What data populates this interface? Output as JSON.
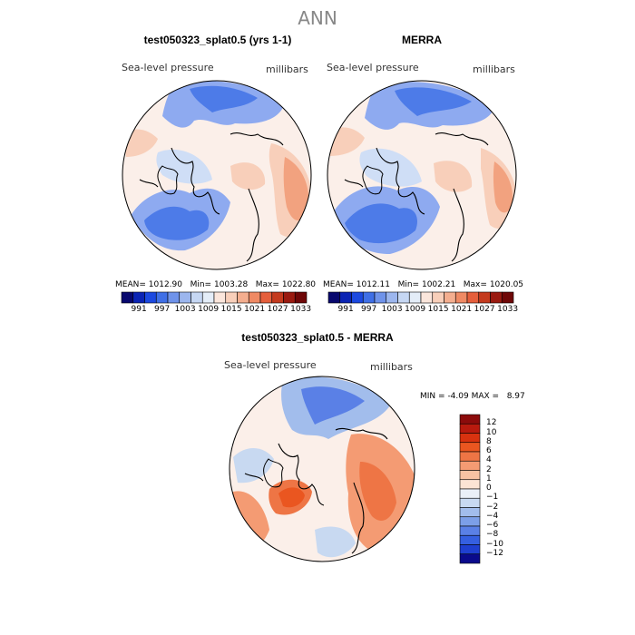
{
  "title": "ANN",
  "panels": [
    {
      "title": "test050323_splat0.5 (yrs 1-1)",
      "variable": "Sea-level pressure",
      "units": "millibars",
      "stats": {
        "mean_label": "MEAN=",
        "mean": "1012.90",
        "min_label": "Min=",
        "min": "1003.28",
        "max_label": "Max=",
        "max": "1022.80"
      }
    },
    {
      "title": "MERRA",
      "variable": "Sea-level pressure",
      "units": "millibars",
      "stats": {
        "mean_label": "MEAN=",
        "mean": "1012.11",
        "min_label": "Min=",
        "min": "1002.21",
        "max_label": "Max=",
        "max": "1020.05"
      }
    }
  ],
  "abs_colorbar": {
    "colors": [
      "#08086e",
      "#0b24b4",
      "#1c49e0",
      "#3f6fe6",
      "#6f93ea",
      "#9cb6ee",
      "#c6d7f3",
      "#e4edf8",
      "#fbe6dc",
      "#f8cfba",
      "#f4ae8f",
      "#ef8a64",
      "#e55f3c",
      "#c43a1e",
      "#9a1a10",
      "#6e0707"
    ],
    "labels": [
      "991",
      "997",
      "1003",
      "1009",
      "1015",
      "1021",
      "1027",
      "1033"
    ]
  },
  "diff_panel": {
    "title": "test050323_splat0.5 - MERRA",
    "variable": "Sea-level pressure",
    "units": "millibars",
    "min_label": "MIN =",
    "min": "-4.09",
    "max_label": "MAX =",
    "max": "8.97"
  },
  "diff_colorbar": {
    "colors": [
      "#8c0b0b",
      "#b81a0e",
      "#d8320f",
      "#ea5620",
      "#ee7545",
      "#f49b73",
      "#f8c2a3",
      "#fbe4d4",
      "#eaf0f8",
      "#c8d9f1",
      "#a2bdec",
      "#7c9fe8",
      "#5a80e6",
      "#355fe0",
      "#1f3fd0",
      "#0a0a8c"
    ],
    "labels": [
      "12",
      "10",
      "8",
      "6",
      "4",
      "2",
      "1",
      "0",
      "−1",
      "−2",
      "−4",
      "−6",
      "−8",
      "−10",
      "−12"
    ]
  },
  "colors": {
    "blue_dark": "#4d7be8",
    "blue_mid": "#8eaaf0",
    "blue_light": "#cfdef6",
    "neutral": "#fbefe9",
    "red_light": "#f8cfba",
    "red_mid": "#f2a27f",
    "red_dark": "#e8643e"
  }
}
